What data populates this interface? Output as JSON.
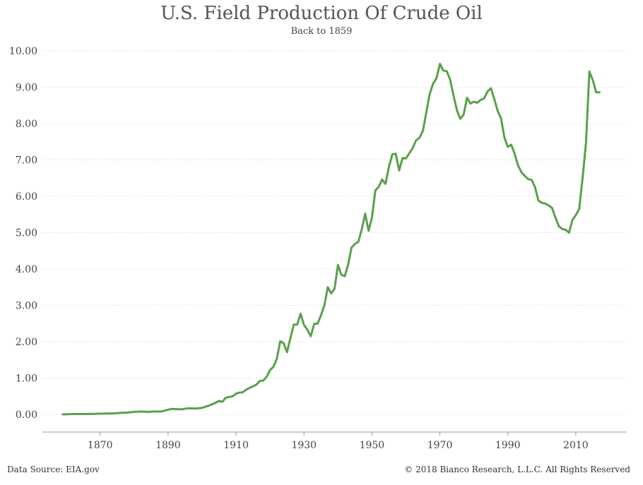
{
  "header": {
    "title": "U.S. Field Production Of Crude Oil",
    "subtitle": "Back to 1859"
  },
  "footer": {
    "source": "Data Source: EIA.gov",
    "copyright": "© 2018 Bianco Research, L.L.C. All Rights Reserved"
  },
  "colors": {
    "line": "#5aa04b",
    "grid": "#d8d8d8",
    "tick_text": "#444444"
  },
  "chart_data": {
    "type": "line",
    "title": "U.S. Field Production Of Crude Oil",
    "subtitle": "Back to 1859",
    "xlabel": "",
    "ylabel": "",
    "xlim": [
      1853,
      2025
    ],
    "ylim": [
      0,
      10
    ],
    "grid": true,
    "x_ticks": [
      1870,
      1890,
      1910,
      1930,
      1950,
      1970,
      1990,
      2010
    ],
    "y_ticks": [
      "0.00",
      "1.00",
      "2.00",
      "3.00",
      "4.00",
      "5.00",
      "6.00",
      "7.00",
      "8.00",
      "9.00",
      "10.00"
    ],
    "series": [
      {
        "values": [
          [
            1859,
            0.0
          ],
          [
            1862,
            0.01
          ],
          [
            1866,
            0.01
          ],
          [
            1870,
            0.02
          ],
          [
            1874,
            0.03
          ],
          [
            1876,
            0.04
          ],
          [
            1878,
            0.05
          ],
          [
            1880,
            0.07
          ],
          [
            1882,
            0.08
          ],
          [
            1884,
            0.07
          ],
          [
            1886,
            0.08
          ],
          [
            1888,
            0.08
          ],
          [
            1890,
            0.13
          ],
          [
            1891,
            0.15
          ],
          [
            1894,
            0.14
          ],
          [
            1896,
            0.17
          ],
          [
            1898,
            0.16
          ],
          [
            1900,
            0.18
          ],
          [
            1902,
            0.24
          ],
          [
            1904,
            0.32
          ],
          [
            1905,
            0.37
          ],
          [
            1906,
            0.35
          ],
          [
            1907,
            0.46
          ],
          [
            1909,
            0.5
          ],
          [
            1910,
            0.57
          ],
          [
            1911,
            0.6
          ],
          [
            1912,
            0.61
          ],
          [
            1913,
            0.68
          ],
          [
            1914,
            0.73
          ],
          [
            1915,
            0.77
          ],
          [
            1916,
            0.82
          ],
          [
            1917,
            0.92
          ],
          [
            1918,
            0.93
          ],
          [
            1919,
            1.03
          ],
          [
            1920,
            1.22
          ],
          [
            1921,
            1.31
          ],
          [
            1922,
            1.53
          ],
          [
            1923,
            2.01
          ],
          [
            1924,
            1.96
          ],
          [
            1925,
            1.71
          ],
          [
            1926,
            2.1
          ],
          [
            1927,
            2.47
          ],
          [
            1928,
            2.47
          ],
          [
            1929,
            2.77
          ],
          [
            1930,
            2.46
          ],
          [
            1931,
            2.33
          ],
          [
            1932,
            2.15
          ],
          [
            1933,
            2.49
          ],
          [
            1934,
            2.5
          ],
          [
            1935,
            2.73
          ],
          [
            1936,
            3.0
          ],
          [
            1937,
            3.5
          ],
          [
            1938,
            3.33
          ],
          [
            1939,
            3.46
          ],
          [
            1940,
            4.11
          ],
          [
            1941,
            3.84
          ],
          [
            1942,
            3.8
          ],
          [
            1943,
            4.12
          ],
          [
            1944,
            4.59
          ],
          [
            1945,
            4.69
          ],
          [
            1946,
            4.75
          ],
          [
            1947,
            5.09
          ],
          [
            1948,
            5.52
          ],
          [
            1949,
            5.05
          ],
          [
            1950,
            5.41
          ],
          [
            1951,
            6.16
          ],
          [
            1952,
            6.26
          ],
          [
            1953,
            6.46
          ],
          [
            1954,
            6.34
          ],
          [
            1955,
            6.81
          ],
          [
            1956,
            7.15
          ],
          [
            1957,
            7.17
          ],
          [
            1958,
            6.71
          ],
          [
            1959,
            7.05
          ],
          [
            1960,
            7.04
          ],
          [
            1961,
            7.18
          ],
          [
            1962,
            7.33
          ],
          [
            1963,
            7.54
          ],
          [
            1964,
            7.61
          ],
          [
            1965,
            7.8
          ],
          [
            1966,
            8.3
          ],
          [
            1967,
            8.81
          ],
          [
            1968,
            9.1
          ],
          [
            1969,
            9.24
          ],
          [
            1970,
            9.64
          ],
          [
            1971,
            9.46
          ],
          [
            1972,
            9.44
          ],
          [
            1973,
            9.21
          ],
          [
            1974,
            8.77
          ],
          [
            1975,
            8.37
          ],
          [
            1976,
            8.13
          ],
          [
            1977,
            8.25
          ],
          [
            1978,
            8.71
          ],
          [
            1979,
            8.55
          ],
          [
            1980,
            8.6
          ],
          [
            1981,
            8.57
          ],
          [
            1982,
            8.65
          ],
          [
            1983,
            8.69
          ],
          [
            1984,
            8.88
          ],
          [
            1985,
            8.97
          ],
          [
            1986,
            8.68
          ],
          [
            1987,
            8.35
          ],
          [
            1988,
            8.14
          ],
          [
            1989,
            7.61
          ],
          [
            1990,
            7.36
          ],
          [
            1991,
            7.42
          ],
          [
            1992,
            7.17
          ],
          [
            1993,
            6.85
          ],
          [
            1994,
            6.66
          ],
          [
            1995,
            6.56
          ],
          [
            1996,
            6.47
          ],
          [
            1997,
            6.45
          ],
          [
            1998,
            6.25
          ],
          [
            1999,
            5.88
          ],
          [
            2000,
            5.82
          ],
          [
            2001,
            5.8
          ],
          [
            2002,
            5.75
          ],
          [
            2003,
            5.68
          ],
          [
            2004,
            5.42
          ],
          [
            2005,
            5.18
          ],
          [
            2006,
            5.1
          ],
          [
            2007,
            5.08
          ],
          [
            2008,
            5.0
          ],
          [
            2009,
            5.35
          ],
          [
            2010,
            5.48
          ],
          [
            2011,
            5.65
          ],
          [
            2012,
            6.5
          ],
          [
            2013,
            7.46
          ],
          [
            2014,
            9.43
          ],
          [
            2015,
            9.2
          ],
          [
            2016,
            8.86
          ],
          [
            2017,
            8.86
          ]
        ]
      }
    ]
  }
}
